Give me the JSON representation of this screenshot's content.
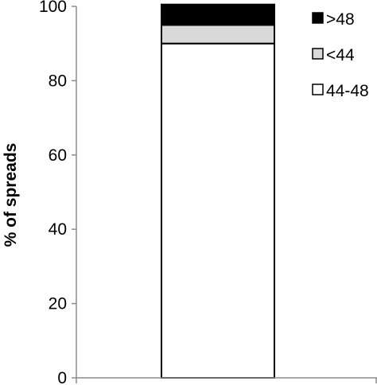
{
  "chart_data": {
    "type": "bar",
    "stacked": true,
    "categories": [
      ""
    ],
    "ylabel": "% of spreads",
    "xlabel": "",
    "ylim": [
      0,
      100
    ],
    "y_ticks": [
      0,
      20,
      40,
      60,
      80,
      100
    ],
    "y_tick_labels": [
      "0",
      "20",
      "40",
      "60",
      "80",
      "100"
    ],
    "grid": false,
    "legend_position": "top-right",
    "series": [
      {
        "name": "44-48",
        "values": [
          90
        ],
        "color": "#ffffff"
      },
      {
        "name": "<44",
        "values": [
          5
        ],
        "color": "#d9d9d9"
      },
      {
        "name": ">48",
        "values": [
          5.5
        ],
        "color": "#000000"
      }
    ],
    "legend_order": [
      ">48",
      "<44",
      "44-48"
    ]
  }
}
